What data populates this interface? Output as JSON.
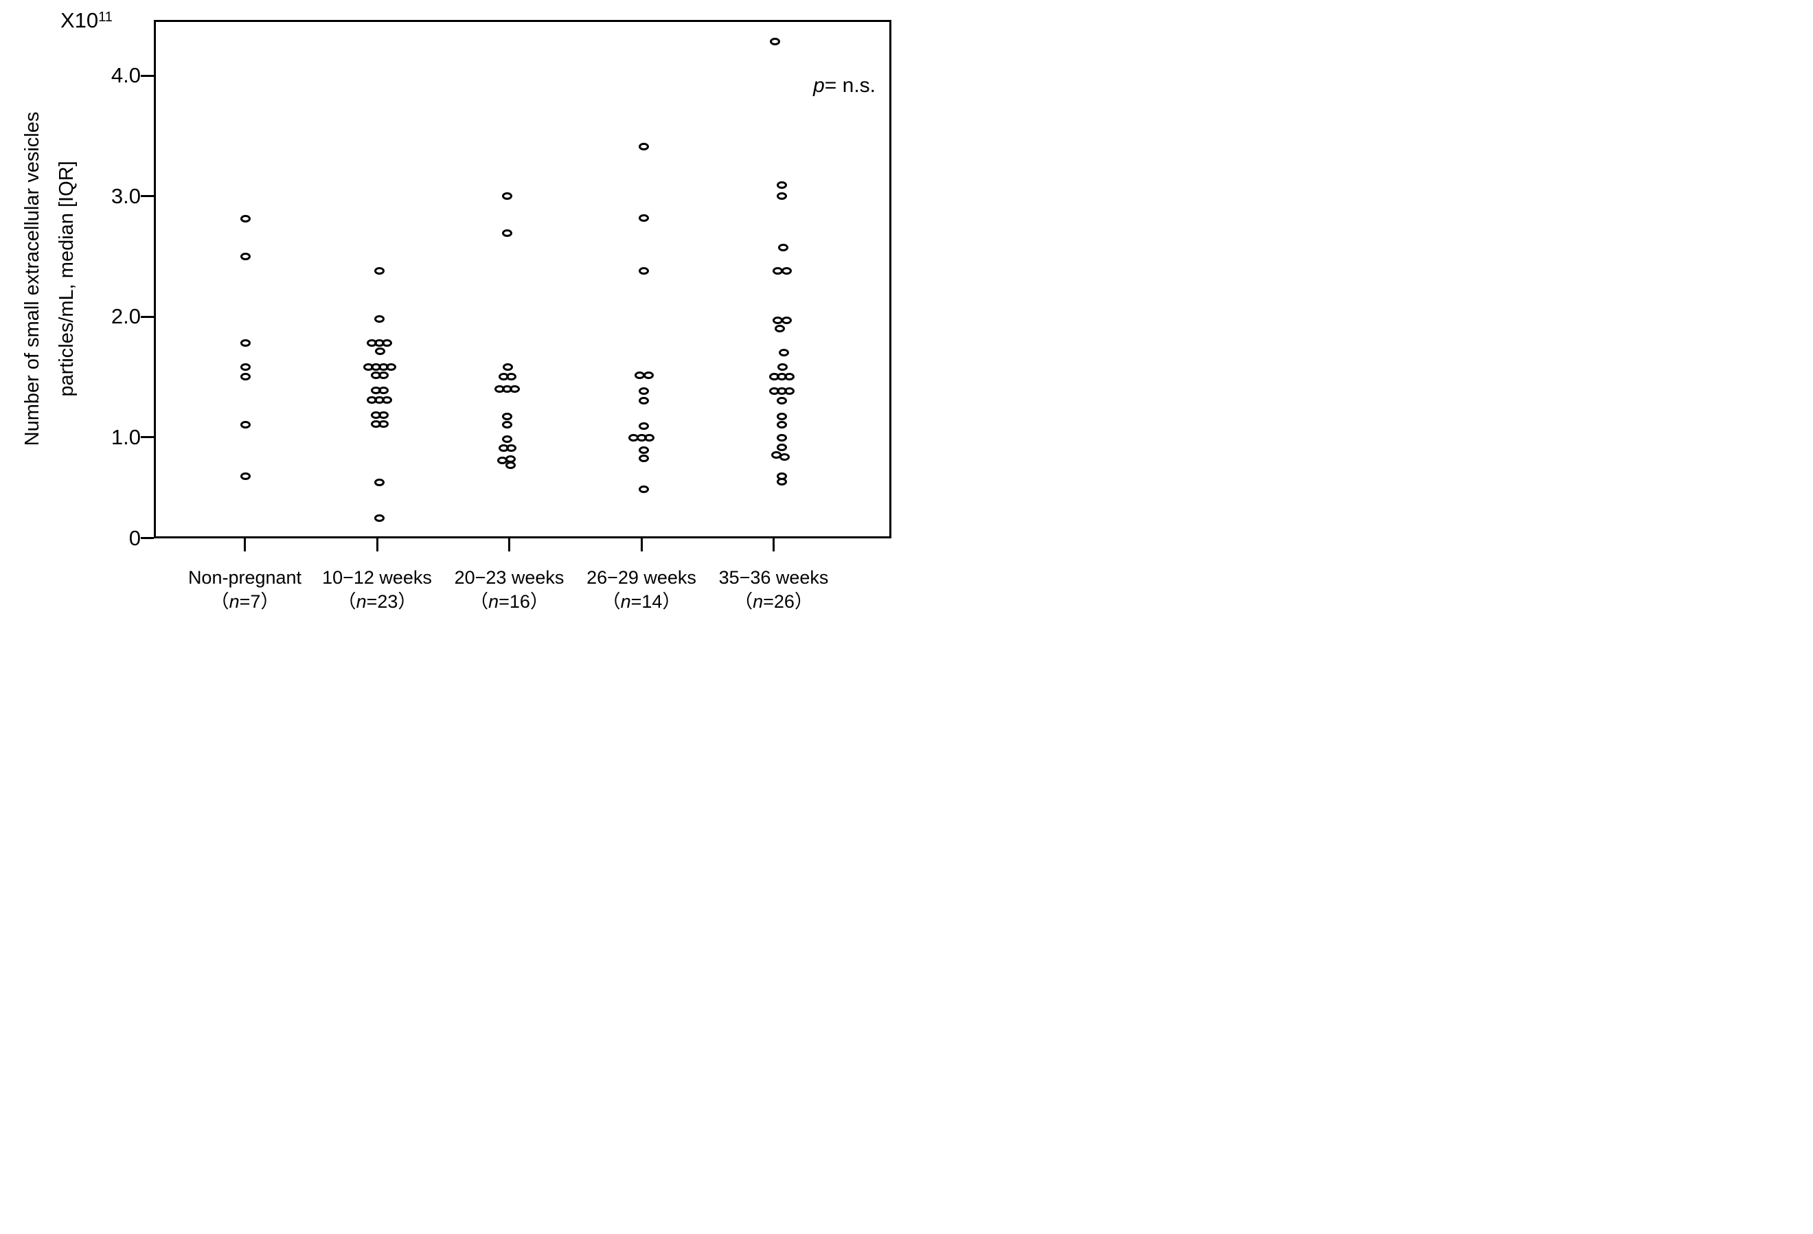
{
  "chart_data": {
    "type": "scatter",
    "title": "",
    "ylabel_lines": [
      "Number of small extracellular vesicles",
      "particles/mL, median [IQR]"
    ],
    "y_unit_parts": [
      "X10",
      "11"
    ],
    "p_annotation_parts": [
      "p",
      "= n.s."
    ],
    "y_tick_labels": [
      "4.0",
      "3.0",
      "2.0",
      "1.0",
      "0"
    ],
    "y_tick_values": [
      4.0,
      3.0,
      2.0,
      1.0,
      0
    ],
    "ylim": [
      0,
      4.5
    ],
    "grid": false,
    "legend": null,
    "categories": [
      "Non-pregnant",
      "10−12 weeks",
      "20−23 weeks",
      "26−29 weeks",
      "35−36 weeks"
    ],
    "groups": [
      {
        "label": "Non-pregnant",
        "n": 7,
        "n_label_parts": [
          "（",
          "n",
          "=7）"
        ],
        "values": [
          2.81,
          2.5,
          1.78,
          1.58,
          1.5,
          1.1,
          0.61
        ],
        "jitter_dx": [
          0,
          0,
          0,
          0,
          0,
          0,
          0
        ]
      },
      {
        "label": "10−12 weeks",
        "n": 23,
        "n_label_parts": [
          "（",
          "n",
          "=23）"
        ],
        "values": [
          2.38,
          1.98,
          1.78,
          1.78,
          1.78,
          1.71,
          1.58,
          1.58,
          1.58,
          1.58,
          1.51,
          1.51,
          1.39,
          1.39,
          1.31,
          1.31,
          1.31,
          1.18,
          1.18,
          1.11,
          1.11,
          0.55,
          0.2
        ],
        "jitter_dx": [
          0,
          0,
          -22,
          0,
          22,
          2,
          -33,
          -11,
          11,
          33,
          -11,
          11,
          -11,
          11,
          -22,
          0,
          22,
          -11,
          11,
          -11,
          11,
          0,
          0
        ]
      },
      {
        "label": "20−23 weeks",
        "n": 16,
        "n_label_parts": [
          "（",
          "n",
          "=16）"
        ],
        "values": [
          3.0,
          2.69,
          1.58,
          1.5,
          1.5,
          1.4,
          1.4,
          1.4,
          1.17,
          1.1,
          0.98,
          0.89,
          0.89,
          0.78,
          0.77,
          0.72
        ],
        "jitter_dx": [
          0,
          0,
          2,
          -11,
          11,
          -22,
          0,
          22,
          0,
          0,
          0,
          -11,
          11,
          10,
          -14,
          10
        ]
      },
      {
        "label": "26−29 weeks",
        "n": 14,
        "n_label_parts": [
          "（",
          "n",
          "=14）"
        ],
        "values": [
          3.41,
          2.82,
          2.38,
          1.51,
          1.51,
          1.38,
          1.3,
          1.09,
          0.99,
          0.99,
          0.99,
          0.87,
          0.79,
          0.48
        ],
        "jitter_dx": [
          0,
          0,
          0,
          -13,
          13,
          0,
          0,
          0,
          -30,
          -6,
          16,
          0,
          0,
          0
        ]
      },
      {
        "label": "35−36 weeks",
        "n": 26,
        "n_label_parts": [
          "（",
          "n",
          "=26）"
        ],
        "values": [
          4.28,
          3.09,
          3.0,
          2.57,
          2.38,
          2.38,
          1.97,
          1.97,
          1.9,
          1.7,
          1.58,
          1.5,
          1.5,
          1.5,
          1.38,
          1.38,
          1.38,
          1.3,
          1.17,
          1.1,
          0.99,
          0.9,
          0.82,
          0.8,
          0.61,
          0.56
        ],
        "jitter_dx": [
          -20,
          0,
          0,
          4,
          -13,
          13,
          -13,
          13,
          -6,
          6,
          2,
          -22,
          0,
          22,
          -22,
          0,
          22,
          0,
          0,
          0,
          0,
          0,
          -16,
          8,
          0,
          0
        ]
      }
    ]
  }
}
